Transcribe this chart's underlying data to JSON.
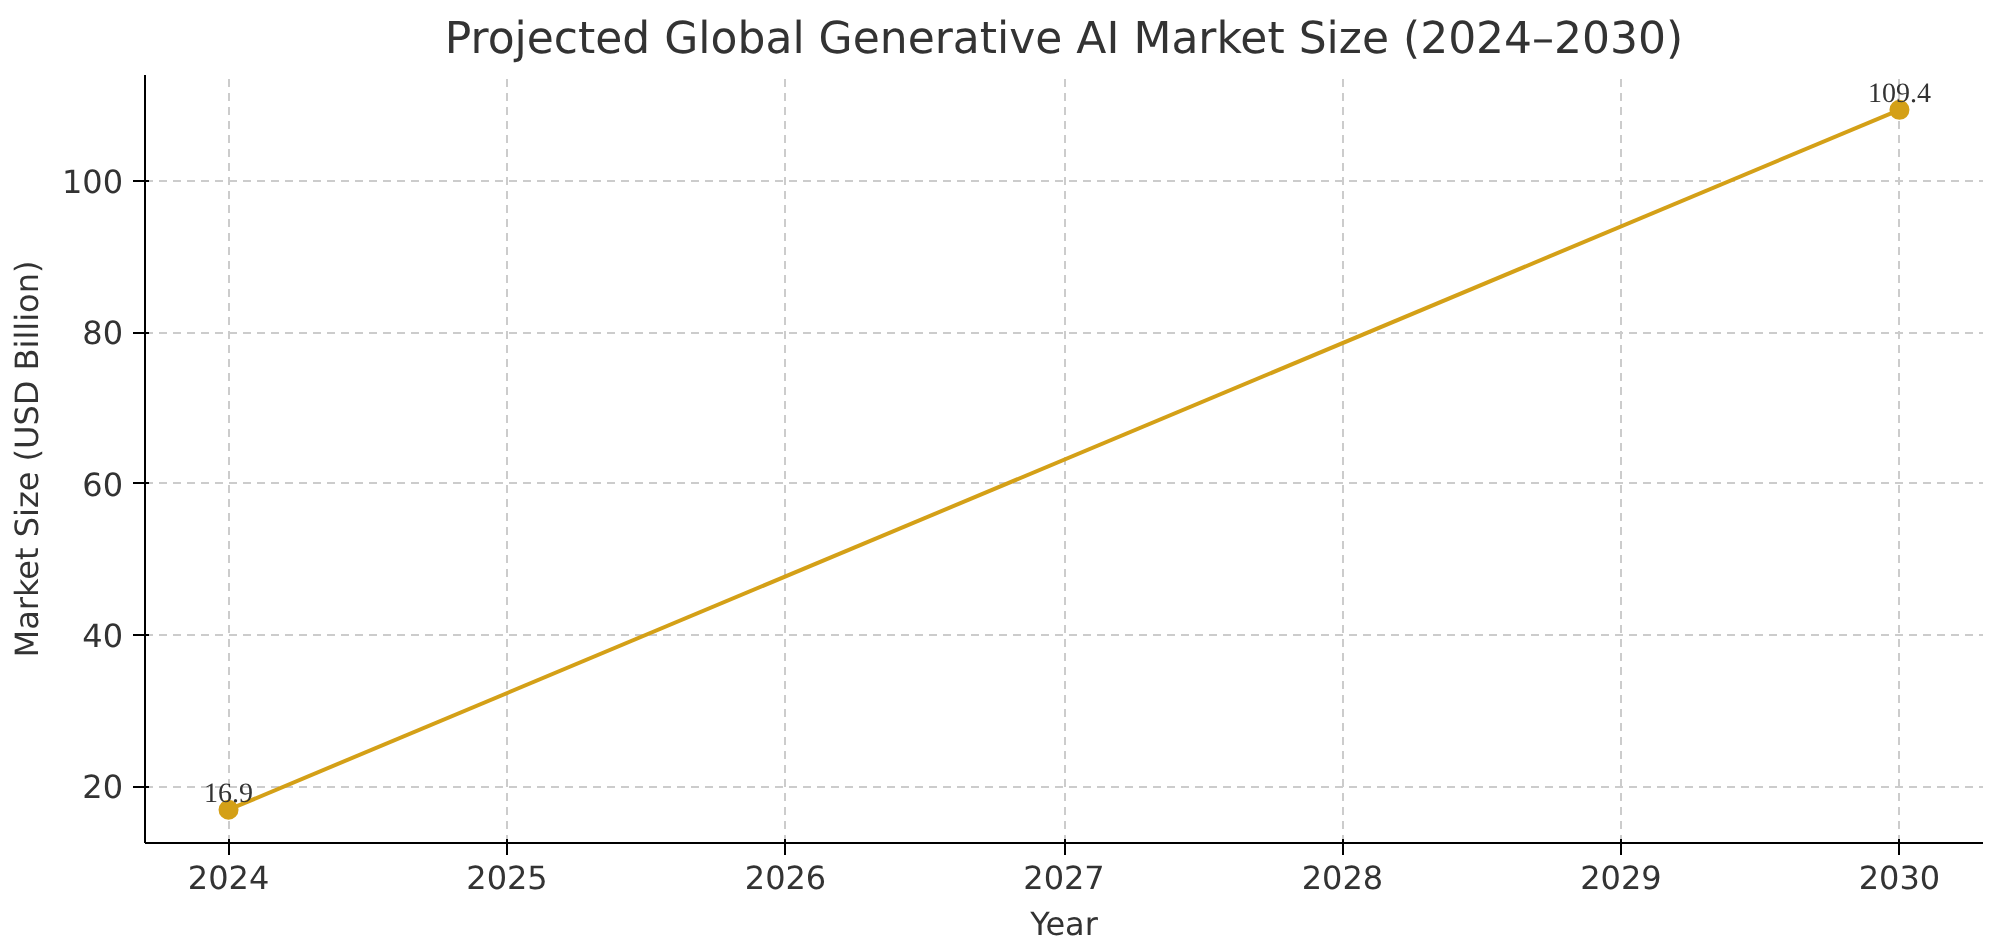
{
  "chart_data": {
    "type": "line",
    "title": "Projected Global Generative AI Market Size (2024–2030)",
    "xlabel": "Year",
    "ylabel": "Market Size (USD Billion)",
    "x": [
      2024,
      2030
    ],
    "series": [
      {
        "color": "#d4a017",
        "values": [
          16.9,
          109.4
        ]
      }
    ],
    "xlim": [
      2023.7,
      2030.3
    ],
    "xticks": [
      2024,
      2025,
      2026,
      2027,
      2028,
      2029,
      2030
    ],
    "ylim": [
      12.5,
      114
    ],
    "yticks": [
      20,
      40,
      60,
      80,
      100
    ],
    "grid": true,
    "marker": "circle",
    "line_style": "solid",
    "data_labels": true
  }
}
